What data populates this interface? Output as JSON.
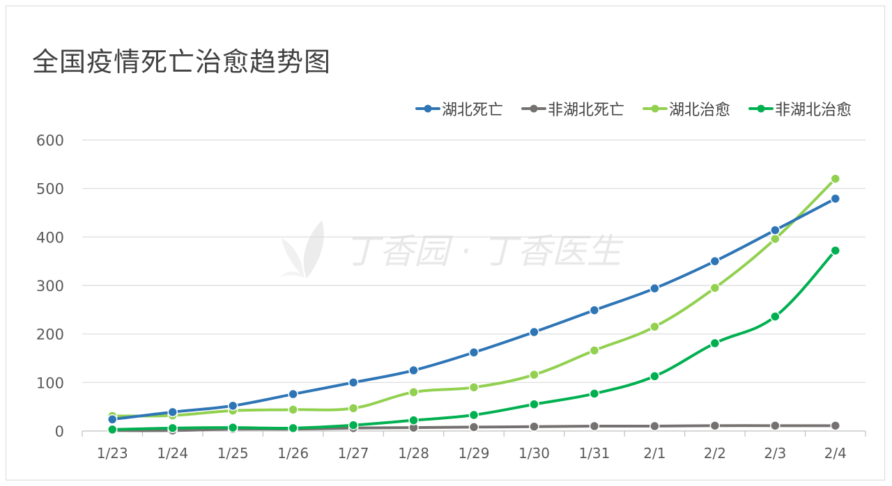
{
  "chart_data": {
    "type": "line",
    "title": "全国疫情死亡治愈趋势图",
    "categories": [
      "1/23",
      "1/24",
      "1/25",
      "1/26",
      "1/27",
      "1/28",
      "1/29",
      "1/30",
      "1/31",
      "2/1",
      "2/2",
      "2/3",
      "2/4"
    ],
    "ylim": [
      0,
      600
    ],
    "yticks": [
      "0",
      "100",
      "200",
      "300",
      "400",
      "500",
      "600"
    ],
    "grid": true,
    "legend_position": "top-right",
    "series": [
      {
        "name": "湖北死亡",
        "color": "#2e75b6",
        "values": [
          24,
          39,
          52,
          76,
          100,
          125,
          162,
          204,
          249,
          294,
          350,
          414,
          479
        ]
      },
      {
        "name": "非湖北死亡",
        "color": "#767171",
        "values": [
          1,
          1,
          4,
          4,
          6,
          7,
          8,
          9,
          10,
          10,
          11,
          11,
          11
        ]
      },
      {
        "name": "湖北治愈",
        "color": "#92d050",
        "values": [
          31,
          32,
          42,
          44,
          47,
          80,
          90,
          116,
          166,
          215,
          295,
          396,
          520
        ]
      },
      {
        "name": "非湖北治愈",
        "color": "#00b050",
        "values": [
          3,
          6,
          7,
          6,
          12,
          22,
          33,
          55,
          77,
          113,
          181,
          236,
          372
        ]
      }
    ]
  },
  "watermark": {
    "text": "丁香园 · 丁香医生",
    "icon": "leaf-logo-icon"
  }
}
